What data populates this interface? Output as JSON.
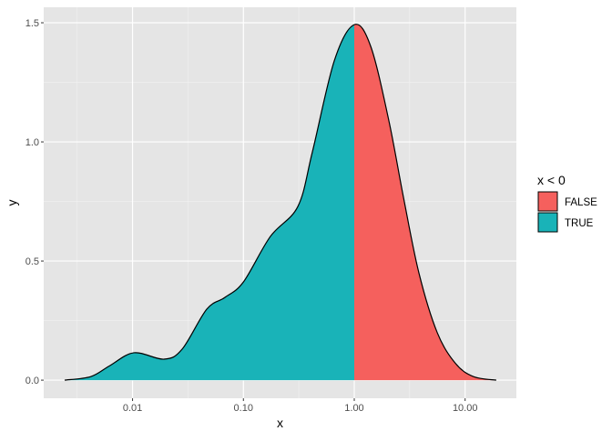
{
  "chart_data": {
    "type": "area",
    "xlabel": "x",
    "ylabel": "y",
    "x_scale": "log10",
    "xlim": [
      0.00158,
      29
    ],
    "ylim": [
      -0.076,
      1.565
    ],
    "x_ticks": [
      0.01,
      0.1,
      1,
      10
    ],
    "x_tick_labels": [
      "0.01",
      "0.10",
      "1.00",
      "10.00"
    ],
    "y_ticks": [
      0,
      0.5,
      1,
      1.5
    ],
    "y_tick_labels": [
      "0.0",
      "0.5",
      "1.0",
      "1.5"
    ],
    "grid": true,
    "split_at_x": 1,
    "points": [
      [
        0.00244,
        0
      ],
      [
        0.0042,
        0.015
      ],
      [
        0.0062,
        0.06
      ],
      [
        0.0103,
        0.115
      ],
      [
        0.0192,
        0.088
      ],
      [
        0.028,
        0.13
      ],
      [
        0.0467,
        0.298
      ],
      [
        0.068,
        0.347
      ],
      [
        0.1,
        0.412
      ],
      [
        0.175,
        0.603
      ],
      [
        0.31,
        0.729
      ],
      [
        0.419,
        0.958
      ],
      [
        0.66,
        1.34
      ],
      [
        1.0,
        1.492
      ],
      [
        1.41,
        1.4
      ],
      [
        2.05,
        1.09
      ],
      [
        2.78,
        0.767
      ],
      [
        3.83,
        0.45
      ],
      [
        5.6,
        0.2
      ],
      [
        8.2,
        0.07
      ],
      [
        11.9,
        0.015
      ],
      [
        19.1,
        0
      ]
    ],
    "legend": {
      "title": "x < 0",
      "placement": "right",
      "entries": [
        {
          "label": "FALSE",
          "color": "#F8766D"
        },
        {
          "label": "TRUE",
          "color": "#00BFC4"
        }
      ]
    },
    "colors": {
      "false_fill": "#F5605D",
      "true_fill": "#19B3B8",
      "panel": "#E5E5E5"
    }
  }
}
